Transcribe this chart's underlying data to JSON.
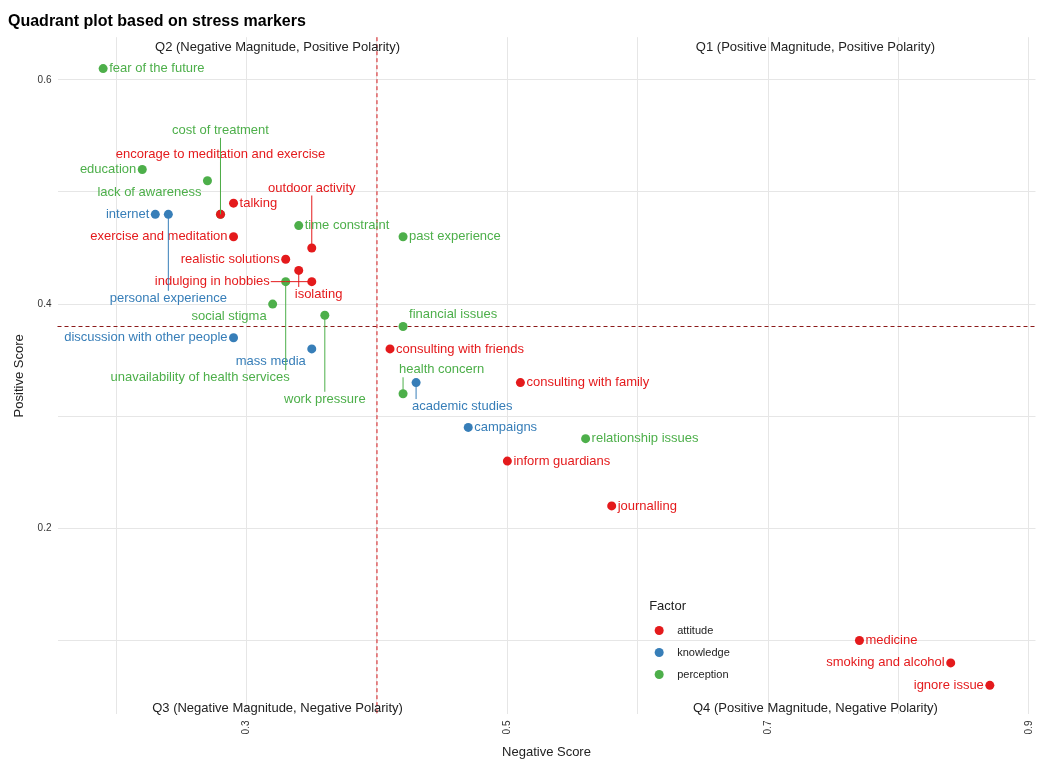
{
  "chart_data": {
    "type": "scatter",
    "title": "Quadrant plot based on stress markers",
    "xlabel": "Negative Score",
    "ylabel": "Positive Score",
    "legend_title": "Factor",
    "legend": "bottom",
    "grid": true,
    "marker": "circle",
    "xlim": [
      0.155,
      0.905
    ],
    "ylim": [
      0.034,
      0.638
    ],
    "xticks": [
      {
        "value": 0.2,
        "label": null
      },
      0.3,
      {
        "value": 0.4,
        "label": null
      },
      0.5,
      {
        "value": 0.6,
        "label": null
      },
      0.7,
      {
        "value": 0.8,
        "label": null
      },
      0.9
    ],
    "yticks": [
      {
        "value": 0.1,
        "label": null
      },
      0.2,
      {
        "value": 0.3,
        "label": null
      },
      0.4,
      {
        "value": 0.5,
        "label": null
      },
      0.6
    ],
    "ref_lines": [
      {
        "axis": "x",
        "value": 0.4,
        "color": "#d7191c",
        "line_style": "dashed"
      },
      {
        "axis": "y",
        "value": 0.38,
        "color": "#8b1a1a",
        "line_style": "dashed"
      }
    ],
    "annotations": [
      "Q2 (Negative Magnitude, Positive Polarity)",
      "Q1 (Positive Magnitude, Positive Polarity)",
      "Q3 (Negative Magnitude, Negative Polarity)",
      "Q4 (Positive Magnitude, Negative Polarity)"
    ],
    "series": [
      {
        "name": "attitude",
        "color": "#e41a1c",
        "x": [
          0.29,
          0.29,
          0.35,
          0.33,
          0.34,
          0.35,
          0.41,
          0.51,
          0.5,
          0.58,
          0.77,
          0.84,
          0.87,
          0.28
        ],
        "values": [
          0.49,
          0.46,
          0.45,
          0.44,
          0.43,
          0.42,
          0.36,
          0.33,
          0.26,
          0.22,
          0.1,
          0.08,
          0.06,
          0.48
        ],
        "value_labels": [
          "talking",
          "exercise and meditation",
          "outdoor activity",
          "realistic solutions",
          "isolating",
          "indulging in hobbies",
          "consulting with friends",
          "consulting with family",
          "inform guardians",
          "journalling",
          "medicine",
          "smoking and alcohol",
          "ignore issue",
          "encorage to meditation and exercise"
        ]
      },
      {
        "name": "knowledge",
        "color": "#377eb8",
        "x": [
          0.24,
          0.23,
          0.29,
          0.35,
          0.43,
          0.47
        ],
        "values": [
          0.48,
          0.48,
          0.37,
          0.36,
          0.33,
          0.29
        ],
        "value_labels": [
          "personal experience",
          "internet",
          "discussion with other people",
          "mass media",
          "academic studies",
          "campaigns"
        ]
      },
      {
        "name": "perception",
        "color": "#4daf4a",
        "x": [
          0.19,
          0.22,
          0.27,
          0.28,
          0.34,
          0.42,
          0.33,
          0.32,
          0.36,
          0.42,
          0.42,
          0.56
        ],
        "values": [
          0.61,
          0.52,
          0.51,
          0.48,
          0.47,
          0.46,
          0.42,
          0.4,
          0.39,
          0.38,
          0.32,
          0.28
        ],
        "value_labels": [
          "fear of the future",
          "education",
          "lack of awareness",
          "cost of treatment",
          "time constraint",
          "past experience",
          "unavailability of health services",
          "social stigma",
          "work pressure",
          "financial issues",
          "health concern",
          "relationship issues"
        ]
      }
    ]
  }
}
